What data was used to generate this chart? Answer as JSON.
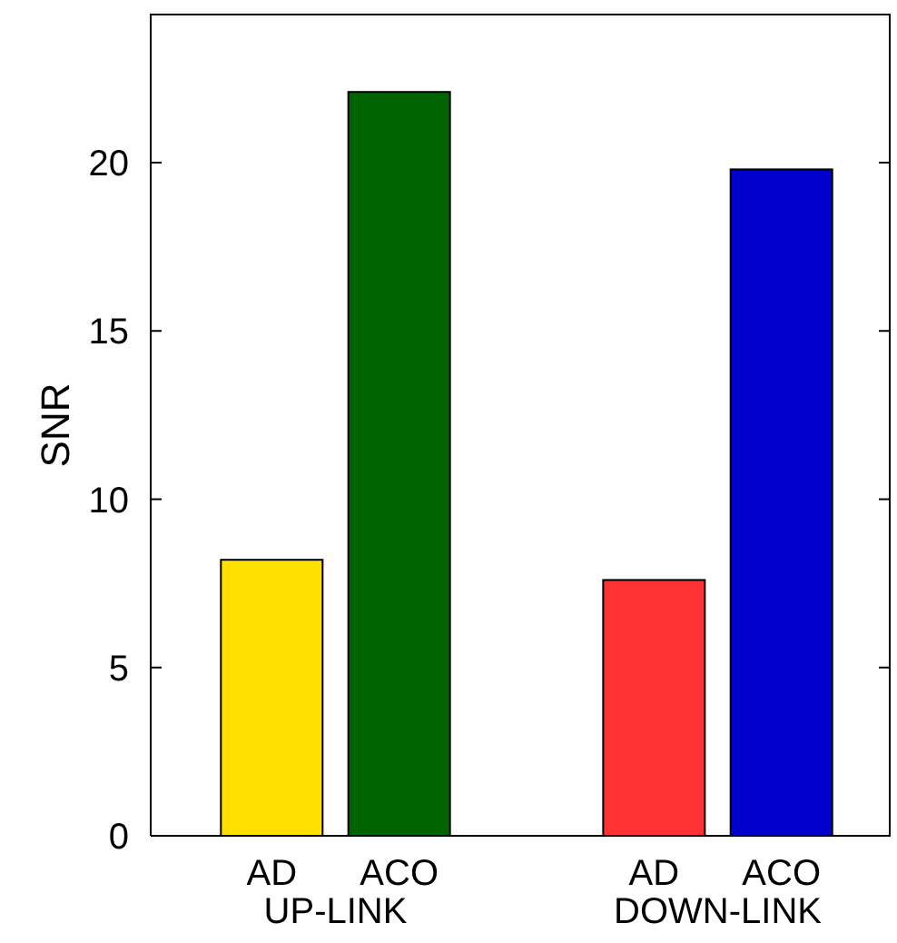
{
  "chart_data": {
    "type": "bar",
    "ylabel": "SNR",
    "categories": [
      "AD",
      "ACO",
      null,
      "AD",
      "ACO"
    ],
    "values": [
      8.2,
      22.1,
      null,
      7.6,
      19.8
    ],
    "colors": [
      "#ffe000",
      "#006400",
      null,
      "#ff3333",
      "#0000cc"
    ],
    "ylim": [
      0,
      24.4
    ],
    "yticks": [
      0,
      5,
      10,
      15,
      20
    ],
    "annotations": [
      "UP-LINK",
      "DOWN-LINK"
    ]
  }
}
